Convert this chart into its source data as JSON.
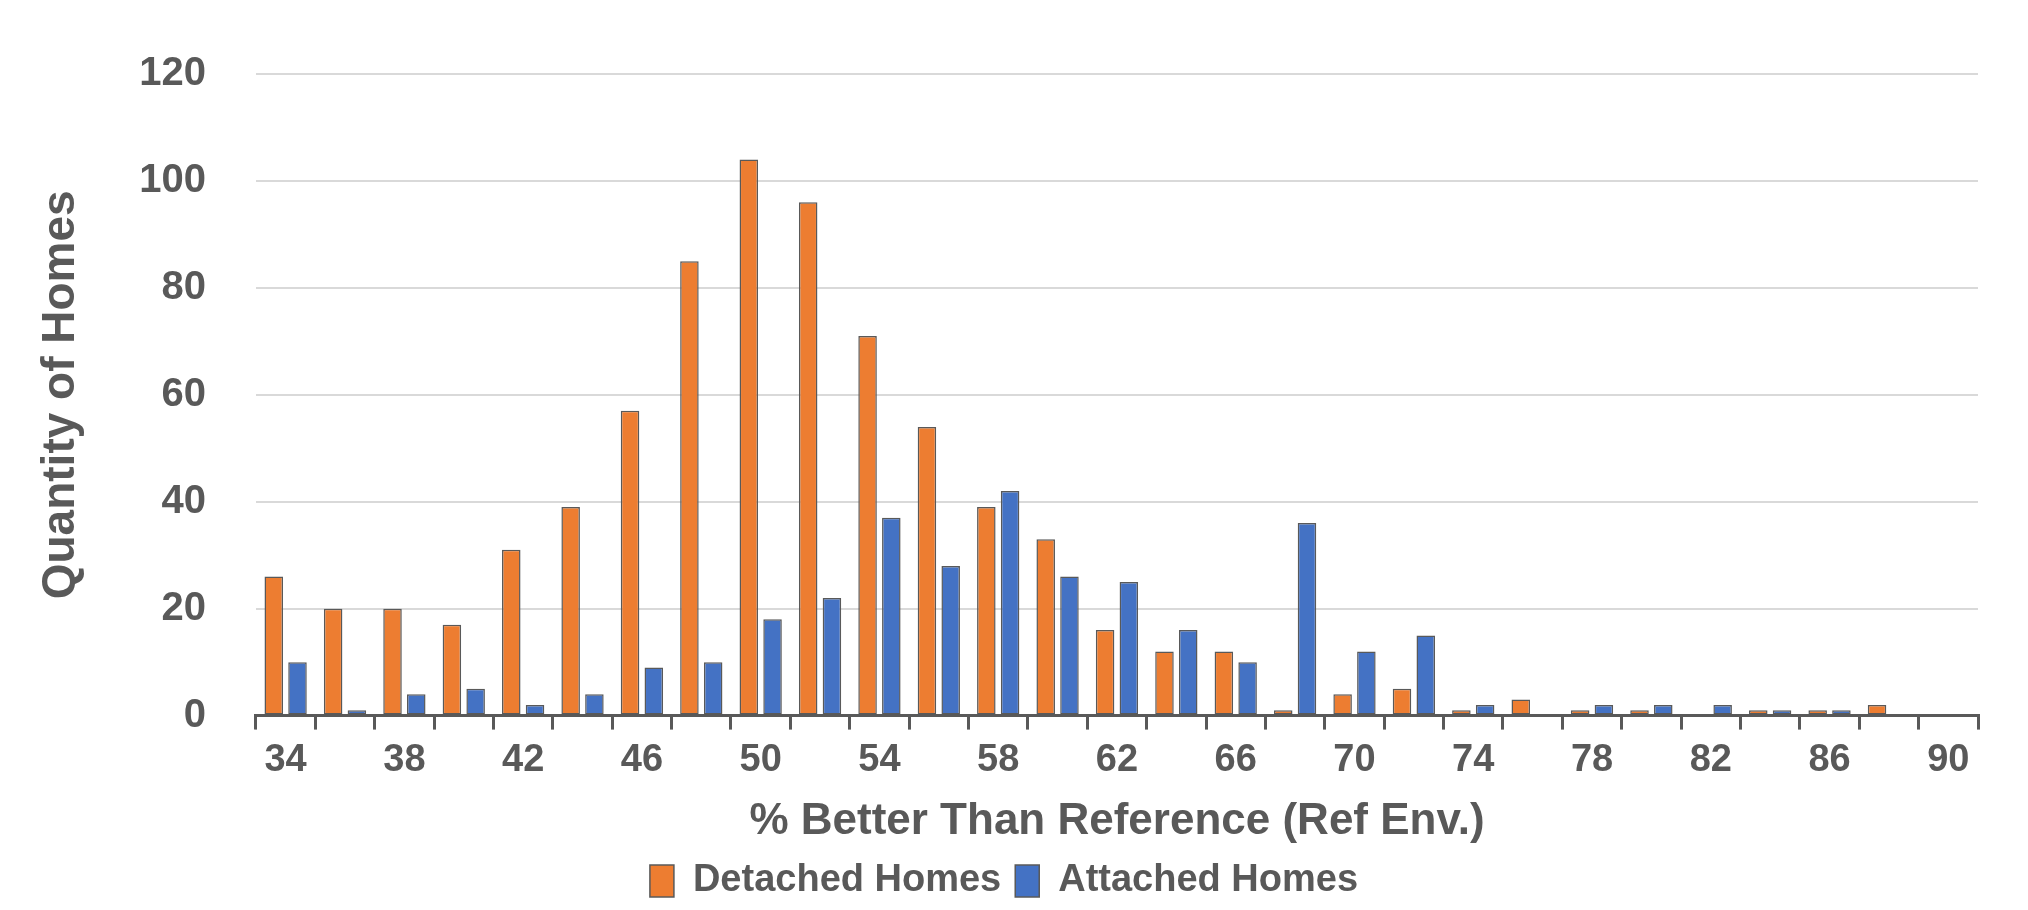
{
  "chart_data": {
    "type": "bar",
    "xlabel": "% Better Than Reference (Ref Env.)",
    "ylabel": "Quantity of Homes",
    "categories": [
      "34",
      null,
      "38",
      null,
      "42",
      null,
      "46",
      null,
      "50",
      null,
      "54",
      null,
      "58",
      null,
      "62",
      null,
      "66",
      null,
      "70",
      null,
      "74",
      null,
      "78",
      null,
      "82",
      null,
      "86",
      null,
      "90"
    ],
    "series": [
      {
        "name": "Detached Homes",
        "color": "#ed7d31",
        "values": [
          26,
          20,
          20,
          17,
          31,
          39,
          57,
          85,
          104,
          96,
          71,
          54,
          39,
          33,
          16,
          12,
          12,
          1,
          4,
          5,
          1,
          3,
          1,
          1,
          0,
          1,
          1,
          2,
          0
        ]
      },
      {
        "name": "Attached Homes",
        "color": "#4472c4",
        "values": [
          10,
          1,
          4,
          5,
          2,
          4,
          9,
          10,
          18,
          22,
          37,
          28,
          42,
          26,
          25,
          16,
          10,
          36,
          12,
          15,
          2,
          0,
          2,
          2,
          2,
          1,
          1,
          0,
          0
        ]
      }
    ],
    "ylim": [
      0,
      120
    ],
    "yticks": [
      0,
      20,
      40,
      60,
      80,
      100,
      120
    ],
    "grid": "y",
    "legend": "bottom"
  }
}
